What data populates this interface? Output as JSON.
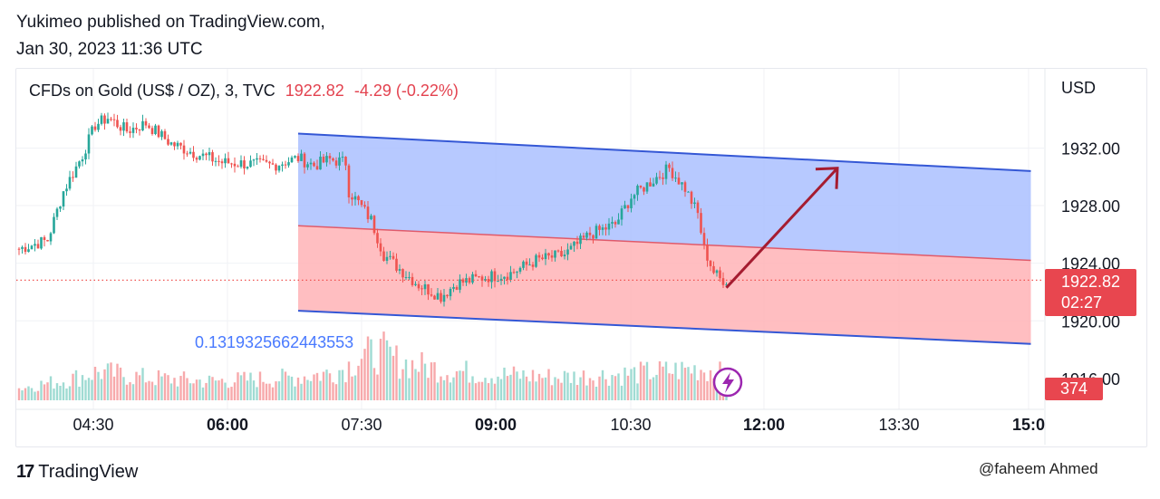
{
  "header": {
    "published_line": "Yukimeo published on TradingView.com,",
    "date_line": "Jan 30, 2023 11:36 UTC"
  },
  "legend": {
    "symbol": "CFDs on Gold (US$ / OZ), 3, TVC",
    "last": "1922.82",
    "change": "-4.29 (-0.22%)"
  },
  "price_axis": {
    "currency": "USD",
    "last_price": "1922.82",
    "countdown": "02:27",
    "volume_tag": "374"
  },
  "indicator": {
    "value": "0.1319325662443553"
  },
  "footer": {
    "brand": "TradingView",
    "watermark": "@faheem Ahmed"
  },
  "colors": {
    "up": "#26a69a",
    "down": "#ef5350",
    "channel_upper_fill": "#aabfff",
    "channel_lower_fill": "#ffb3b6",
    "channel_line": "#3457d5",
    "midline": "#e05a6a",
    "arrow": "#a51c30"
  },
  "icons": {
    "lightning": "lightning-icon",
    "logo": "tradingview-logo-icon"
  },
  "chart_data": {
    "type": "candlestick",
    "title": "CFDs on Gold (US$ / OZ), 3, TVC",
    "ylabel": "USD",
    "x_ticks": [
      {
        "label": "04:30",
        "bold": false
      },
      {
        "label": "06:00",
        "bold": true
      },
      {
        "label": "07:30",
        "bold": false
      },
      {
        "label": "09:00",
        "bold": true
      },
      {
        "label": "10:30",
        "bold": false
      },
      {
        "label": "12:00",
        "bold": true
      },
      {
        "label": "13:30",
        "bold": false
      },
      {
        "label": "15:0",
        "bold": true
      }
    ],
    "y_ticks": [
      "1932.00",
      "1928.00",
      "1924.00",
      "1920.00",
      "1916.00"
    ],
    "y_range": [
      1913.8,
      1937.5
    ],
    "price_path": [
      [
        0,
        1925.0
      ],
      [
        9,
        1925.6
      ],
      [
        14,
        1929.0
      ],
      [
        20,
        1931.5
      ],
      [
        24,
        1933.6
      ],
      [
        28,
        1934.1
      ],
      [
        34,
        1933.2
      ],
      [
        40,
        1933.7
      ],
      [
        48,
        1932.3
      ],
      [
        56,
        1931.6
      ],
      [
        64,
        1931.0
      ],
      [
        72,
        1930.9
      ],
      [
        80,
        1930.8
      ],
      [
        88,
        1931.3
      ],
      [
        93,
        1930.8
      ],
      [
        98,
        1931.2
      ],
      [
        103,
        1931.0
      ],
      [
        104,
        1929.0
      ],
      [
        107,
        1928.2
      ],
      [
        111,
        1927.0
      ],
      [
        115,
        1924.6
      ],
      [
        120,
        1923.6
      ],
      [
        126,
        1922.5
      ],
      [
        133,
        1921.7
      ],
      [
        138,
        1922.6
      ],
      [
        146,
        1923.0
      ],
      [
        155,
        1923.3
      ],
      [
        163,
        1924.2
      ],
      [
        172,
        1924.6
      ],
      [
        180,
        1926.0
      ],
      [
        188,
        1926.7
      ],
      [
        193,
        1928.6
      ],
      [
        200,
        1929.8
      ],
      [
        205,
        1930.6
      ],
      [
        210,
        1929.2
      ],
      [
        214,
        1927.4
      ],
      [
        216,
        1925.0
      ],
      [
        219,
        1923.4
      ],
      [
        221,
        1922.9
      ],
      [
        223,
        1922.82
      ]
    ],
    "volume_path": [
      [
        0,
        180
      ],
      [
        15,
        300
      ],
      [
        25,
        420
      ],
      [
        40,
        330
      ],
      [
        60,
        280
      ],
      [
        85,
        330
      ],
      [
        98,
        400
      ],
      [
        103,
        480
      ],
      [
        108,
        650
      ],
      [
        115,
        700
      ],
      [
        120,
        560
      ],
      [
        135,
        440
      ],
      [
        150,
        380
      ],
      [
        170,
        340
      ],
      [
        190,
        380
      ],
      [
        205,
        430
      ],
      [
        215,
        470
      ],
      [
        223,
        374
      ]
    ],
    "volume_max": 1200,
    "channel": {
      "upper": {
        "start": [
          88,
          1933.0
        ],
        "end": [
          319,
          1930.4
        ]
      },
      "mid": {
        "start": [
          88,
          1926.6
        ],
        "end": [
          319,
          1924.2
        ]
      },
      "lower": {
        "start": [
          88,
          1920.7
        ],
        "end": [
          319,
          1918.4
        ]
      }
    },
    "arrow": {
      "start": [
        223,
        1922.3
      ],
      "end": [
        258,
        1930.6
      ]
    },
    "last_price": 1922.82,
    "indicator_value": 0.1319325662443553
  }
}
